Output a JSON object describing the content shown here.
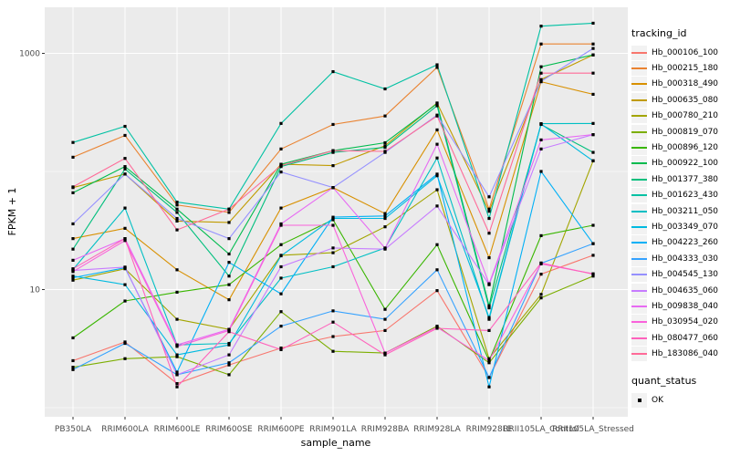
{
  "figure": {
    "bg": "#FFFFFF",
    "panel_bg": "#EBEBEB",
    "grid_color": "#FFFFFF",
    "tick_color": "#333333",
    "tick_label_color": "#4D4D4D",
    "marker_color": "#000000"
  },
  "chart_data": {
    "type": "line",
    "title": "",
    "xlabel": "sample_name",
    "ylabel": "FPKM + 1",
    "y_scale": "log10",
    "ylim": [
      1,
      2400
    ],
    "y_ticks": [
      {
        "label": "10",
        "value": 10
      },
      {
        "label": "1000",
        "value": 1000
      }
    ],
    "y_minor": [
      1,
      100
    ],
    "grid": true,
    "legend_position": "right",
    "legend_title": "tracking_id",
    "legend2_title": "quant_status",
    "legend2_items": [
      "OK"
    ],
    "categories": [
      "PB350LA",
      "RRIM600LA",
      "RRIM600LE",
      "RRIM600SE",
      "RRIM600PE",
      "RRIM901LA",
      "RRIM928BA",
      "RRIM928LA",
      "RRIM928LE",
      "RRII105LA_Control",
      "RRII105LA_Stressed"
    ],
    "series": [
      {
        "name": "Hb_000106_100",
        "color": "#F8766D",
        "values": [
          2.5,
          3.6,
          1.6,
          2.3,
          3.2,
          4.0,
          4.5,
          9.8,
          1.8,
          13.5,
          19.5
        ]
      },
      {
        "name": "Hb_000215_180",
        "color": "#EA8331",
        "values": [
          132,
          202,
          52,
          45,
          155,
          250,
          295,
          760,
          48,
          1200,
          1200
        ]
      },
      {
        "name": "Hb_000318_490",
        "color": "#D89000",
        "values": [
          27,
          33,
          14.7,
          8.2,
          49,
          73,
          44,
          225,
          18.6,
          575,
          450
        ]
      },
      {
        "name": "Hb_000635_080",
        "color": "#C09B00",
        "values": [
          73,
          95,
          38,
          37,
          115,
          112,
          165,
          380,
          46,
          600,
          970
        ]
      },
      {
        "name": "Hb_000780_210",
        "color": "#A3A500",
        "values": [
          12,
          15,
          5.6,
          4.6,
          19.5,
          20.5,
          34,
          70,
          2.6,
          9.1,
          123
        ]
      },
      {
        "name": "Hb_000819_070",
        "color": "#7CAE00",
        "values": [
          2.2,
          2.6,
          2.7,
          1.9,
          6.5,
          3.0,
          2.9,
          4.9,
          2.4,
          8.5,
          13.0
        ]
      },
      {
        "name": "Hb_000896_120",
        "color": "#39B600",
        "values": [
          3.9,
          8.0,
          9.5,
          11,
          24,
          39,
          6.8,
          24,
          2.5,
          28.6,
          35
        ]
      },
      {
        "name": "Hb_000922_100",
        "color": "#00BB4E",
        "values": [
          66,
          110,
          48,
          20,
          115,
          150,
          175,
          375,
          7.3,
          770,
          970
        ]
      },
      {
        "name": "Hb_001377_380",
        "color": "#00BF7D",
        "values": [
          22,
          105,
          45,
          13,
          110,
          145,
          160,
          360,
          7.0,
          250,
          145
        ]
      },
      {
        "name": "Hb_001623_430",
        "color": "#00C1A3",
        "values": [
          176,
          241,
          55,
          48,
          255,
          700,
          500,
          800,
          40,
          1700,
          1800
        ]
      },
      {
        "name": "Hb_003211_050",
        "color": "#00BFC4",
        "values": [
          14.8,
          49,
          3.4,
          3.5,
          12.5,
          15.6,
          22.5,
          130,
          5.6,
          254,
          255
        ]
      },
      {
        "name": "Hb_003349_070",
        "color": "#00BAE0",
        "values": [
          13,
          11,
          2.8,
          3.4,
          19.3,
          40,
          40,
          92,
          5.8,
          252,
          123
        ]
      },
      {
        "name": "Hb_004223_260",
        "color": "#00B0F6",
        "values": [
          12.6,
          15.3,
          2.0,
          17,
          9.2,
          41,
          42,
          95,
          1.5,
          100,
          24.5
        ]
      },
      {
        "name": "Hb_004333_030",
        "color": "#35A2FF",
        "values": [
          2.1,
          3.5,
          1.9,
          2.4,
          4.9,
          6.6,
          5.6,
          14.7,
          1.8,
          16.7,
          24.5
        ]
      },
      {
        "name": "Hb_004545_130",
        "color": "#9590FF",
        "values": [
          36,
          95,
          40,
          27,
          99,
          73,
          145,
          300,
          61,
          580,
          1100
        ]
      },
      {
        "name": "Hb_004635_060",
        "color": "#C77CFF",
        "values": [
          14.5,
          15.5,
          1.9,
          2.8,
          15.6,
          22.5,
          22,
          51,
          11,
          155,
          205
        ]
      },
      {
        "name": "Hb_009838_040",
        "color": "#E76BF3",
        "values": [
          17.7,
          27,
          3.4,
          4.6,
          36,
          73,
          22.4,
          170,
          11.2,
          185,
          205
        ]
      },
      {
        "name": "Hb_030954_020",
        "color": "#FA62DB",
        "values": [
          14.2,
          26,
          3.3,
          4.5,
          35,
          35,
          2.9,
          4.8,
          2.5,
          16.5,
          13.6
        ]
      },
      {
        "name": "Hb_080477_060",
        "color": "#FF62BC",
        "values": [
          15,
          27,
          1.5,
          4.4,
          3.1,
          5.3,
          2.8,
          4.7,
          4.5,
          16.8,
          13.5
        ]
      },
      {
        "name": "Hb_183086_040",
        "color": "#FF6A98",
        "values": [
          74,
          129,
          32,
          48,
          112,
          150,
          148,
          295,
          30,
          680,
          680
        ]
      }
    ]
  }
}
